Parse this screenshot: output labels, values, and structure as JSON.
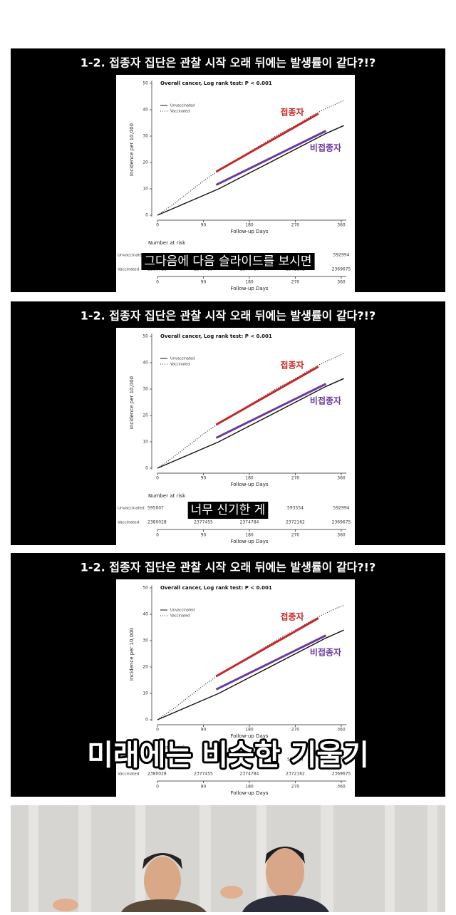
{
  "panels": [
    {
      "title": "1-2. 접종자 집단은 관찰 시작 오래 뒤에는 발생률이 같다?!?",
      "caption": "그다음에 다음 슬라이드를 보시면"
    },
    {
      "title": "1-2. 접종자 집단은 관찰 시작 오래 뒤에는 발생률이 같다?!?",
      "caption": "너무 신기한 게"
    },
    {
      "title": "1-2. 접종자 집단은 관찰 시작 오래 뒤에는 발생률이 같다?!?",
      "caption": "미래에는 비슷한 기울기"
    }
  ],
  "chart": {
    "type": "line",
    "title": "Overall cancer, Log rank test: P < 0.001",
    "x_label": "Follow-up Days",
    "y_label": "Incidence per 10,000",
    "xlim": [
      0,
      370
    ],
    "ylim": [
      0,
      51
    ],
    "xticks": [
      0,
      90,
      180,
      270,
      360
    ],
    "yticks": [
      0,
      10,
      20,
      30,
      40,
      50
    ],
    "x": [
      0,
      30,
      60,
      90,
      120,
      150,
      180,
      210,
      240,
      270,
      300,
      330,
      365
    ],
    "series": [
      {
        "name": "Unvaccinated",
        "color": "#111111",
        "style": "solid",
        "values": [
          0,
          2.5,
          5,
          7.5,
          10,
          13,
          16,
          19,
          22,
          25,
          28,
          31,
          34
        ]
      },
      {
        "name": "Vaccinated",
        "color": "#333333",
        "style": "dotted",
        "values": [
          0,
          4,
          8.5,
          13,
          17,
          20.5,
          24,
          27.5,
          31,
          34,
          37.5,
          40.5,
          43.5
        ]
      }
    ],
    "annotations": [
      {
        "label": "접종자",
        "color": "#c62828",
        "x": [
          115,
          315
        ],
        "y": [
          16.5,
          38.5
        ]
      },
      {
        "label": "비접종자",
        "color": "#6a3aa0",
        "x": [
          115,
          330
        ],
        "y": [
          11.5,
          32
        ]
      }
    ],
    "risk_table": {
      "title": "Number at risk",
      "rows": [
        {
          "label": "Unvaccinated",
          "values": [
            595007,
            null,
            null,
            593554,
            592994
          ]
        },
        {
          "label": "Vaccinated",
          "values": [
            2380028,
            2377455,
            2374784,
            2372162,
            2369675
          ]
        }
      ]
    }
  }
}
